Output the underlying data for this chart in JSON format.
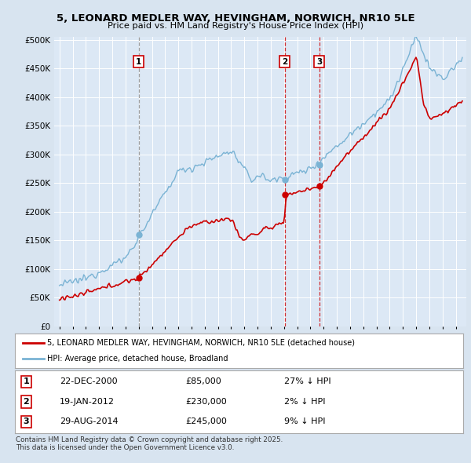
{
  "title": "5, LEONARD MEDLER WAY, HEVINGHAM, NORWICH, NR10 5LE",
  "subtitle": "Price paid vs. HM Land Registry's House Price Index (HPI)",
  "sale_dates_num": [
    2001.0,
    2012.055,
    2014.66
  ],
  "sale_prices": [
    85000,
    230000,
    245000
  ],
  "sale_labels": [
    "1",
    "2",
    "3"
  ],
  "sale_vline_styles": [
    "gray_dash",
    "red_dash",
    "red_dash"
  ],
  "legend_entries": [
    "5, LEONARD MEDLER WAY, HEVINGHAM, NORWICH, NR10 5LE (detached house)",
    "HPI: Average price, detached house, Broadland"
  ],
  "table_rows": [
    [
      "1",
      "22-DEC-2000",
      "£85,000",
      "27% ↓ HPI"
    ],
    [
      "2",
      "19-JAN-2012",
      "£230,000",
      "2% ↓ HPI"
    ],
    [
      "3",
      "29-AUG-2014",
      "£245,000",
      "9% ↓ HPI"
    ]
  ],
  "footnote": "Contains HM Land Registry data © Crown copyright and database right 2025.\nThis data is licensed under the Open Government Licence v3.0.",
  "ylim": [
    0,
    500000
  ],
  "yticks": [
    0,
    50000,
    100000,
    150000,
    200000,
    250000,
    300000,
    350000,
    400000,
    450000,
    500000
  ],
  "ytick_labels": [
    "£0",
    "£50K",
    "£100K",
    "£150K",
    "£200K",
    "£250K",
    "£300K",
    "£350K",
    "£400K",
    "£450K",
    "£500K"
  ],
  "hpi_color": "#7ab3d4",
  "price_color": "#cc0000",
  "fig_bg_color": "#d8e4f0",
  "plot_bg_color": "#dce8f5"
}
